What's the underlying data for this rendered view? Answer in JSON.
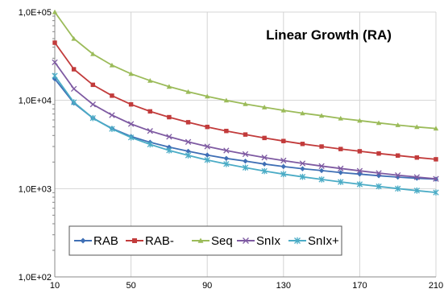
{
  "chart_data": {
    "type": "line",
    "title": "Linear Growth (RA)",
    "xlabel": "",
    "ylabel": "",
    "y_scale": "log",
    "xlim": [
      10,
      210
    ],
    "ylim": [
      100,
      100000
    ],
    "x_ticks": [
      "10",
      "50",
      "90",
      "130",
      "170",
      "210"
    ],
    "y_ticks": [
      "1,0E+02",
      "1,0E+03",
      "1,0E+04",
      "1,0E+05"
    ],
    "grid": "vertical and horizontal at major ticks",
    "legend_position": "bottom-left inside plot",
    "x": [
      10,
      20,
      30,
      40,
      50,
      60,
      70,
      80,
      90,
      100,
      110,
      120,
      130,
      140,
      150,
      160,
      170,
      180,
      190,
      200,
      210
    ],
    "series": [
      {
        "name": "RAB",
        "color": "#3f6fb5",
        "marker": "diamond",
        "values": [
          17500,
          9300,
          6300,
          4800,
          3900,
          3350,
          2950,
          2650,
          2400,
          2200,
          2050,
          1900,
          1780,
          1680,
          1600,
          1520,
          1460,
          1400,
          1350,
          1310,
          1280
        ]
      },
      {
        "name": "RAB-",
        "color": "#c23b3b",
        "marker": "square",
        "values": [
          45000,
          22500,
          15000,
          11300,
          9000,
          7500,
          6450,
          5650,
          5000,
          4500,
          4100,
          3750,
          3460,
          3210,
          3000,
          2810,
          2650,
          2500,
          2370,
          2250,
          2150
        ]
      },
      {
        "name": "Seq",
        "color": "#9bbb59",
        "marker": "triangle",
        "values": [
          100000,
          50000,
          33500,
          25000,
          20000,
          16700,
          14300,
          12500,
          11100,
          10000,
          9100,
          8350,
          7700,
          7150,
          6700,
          6250,
          5900,
          5550,
          5250,
          5000,
          4800
        ]
      },
      {
        "name": "SnIx",
        "color": "#7e5aa2",
        "marker": "x",
        "values": [
          27000,
          13500,
          9000,
          6800,
          5400,
          4500,
          3870,
          3380,
          3000,
          2700,
          2460,
          2250,
          2080,
          1930,
          1800,
          1690,
          1590,
          1500,
          1420,
          1350,
          1290
        ]
      },
      {
        "name": "SnIx+",
        "color": "#4bacc6",
        "marker": "asterisk",
        "values": [
          19000,
          9500,
          6300,
          4750,
          3800,
          3170,
          2710,
          2380,
          2110,
          1900,
          1730,
          1580,
          1460,
          1360,
          1270,
          1190,
          1120,
          1060,
          1000,
          950,
          905
        ]
      }
    ]
  }
}
